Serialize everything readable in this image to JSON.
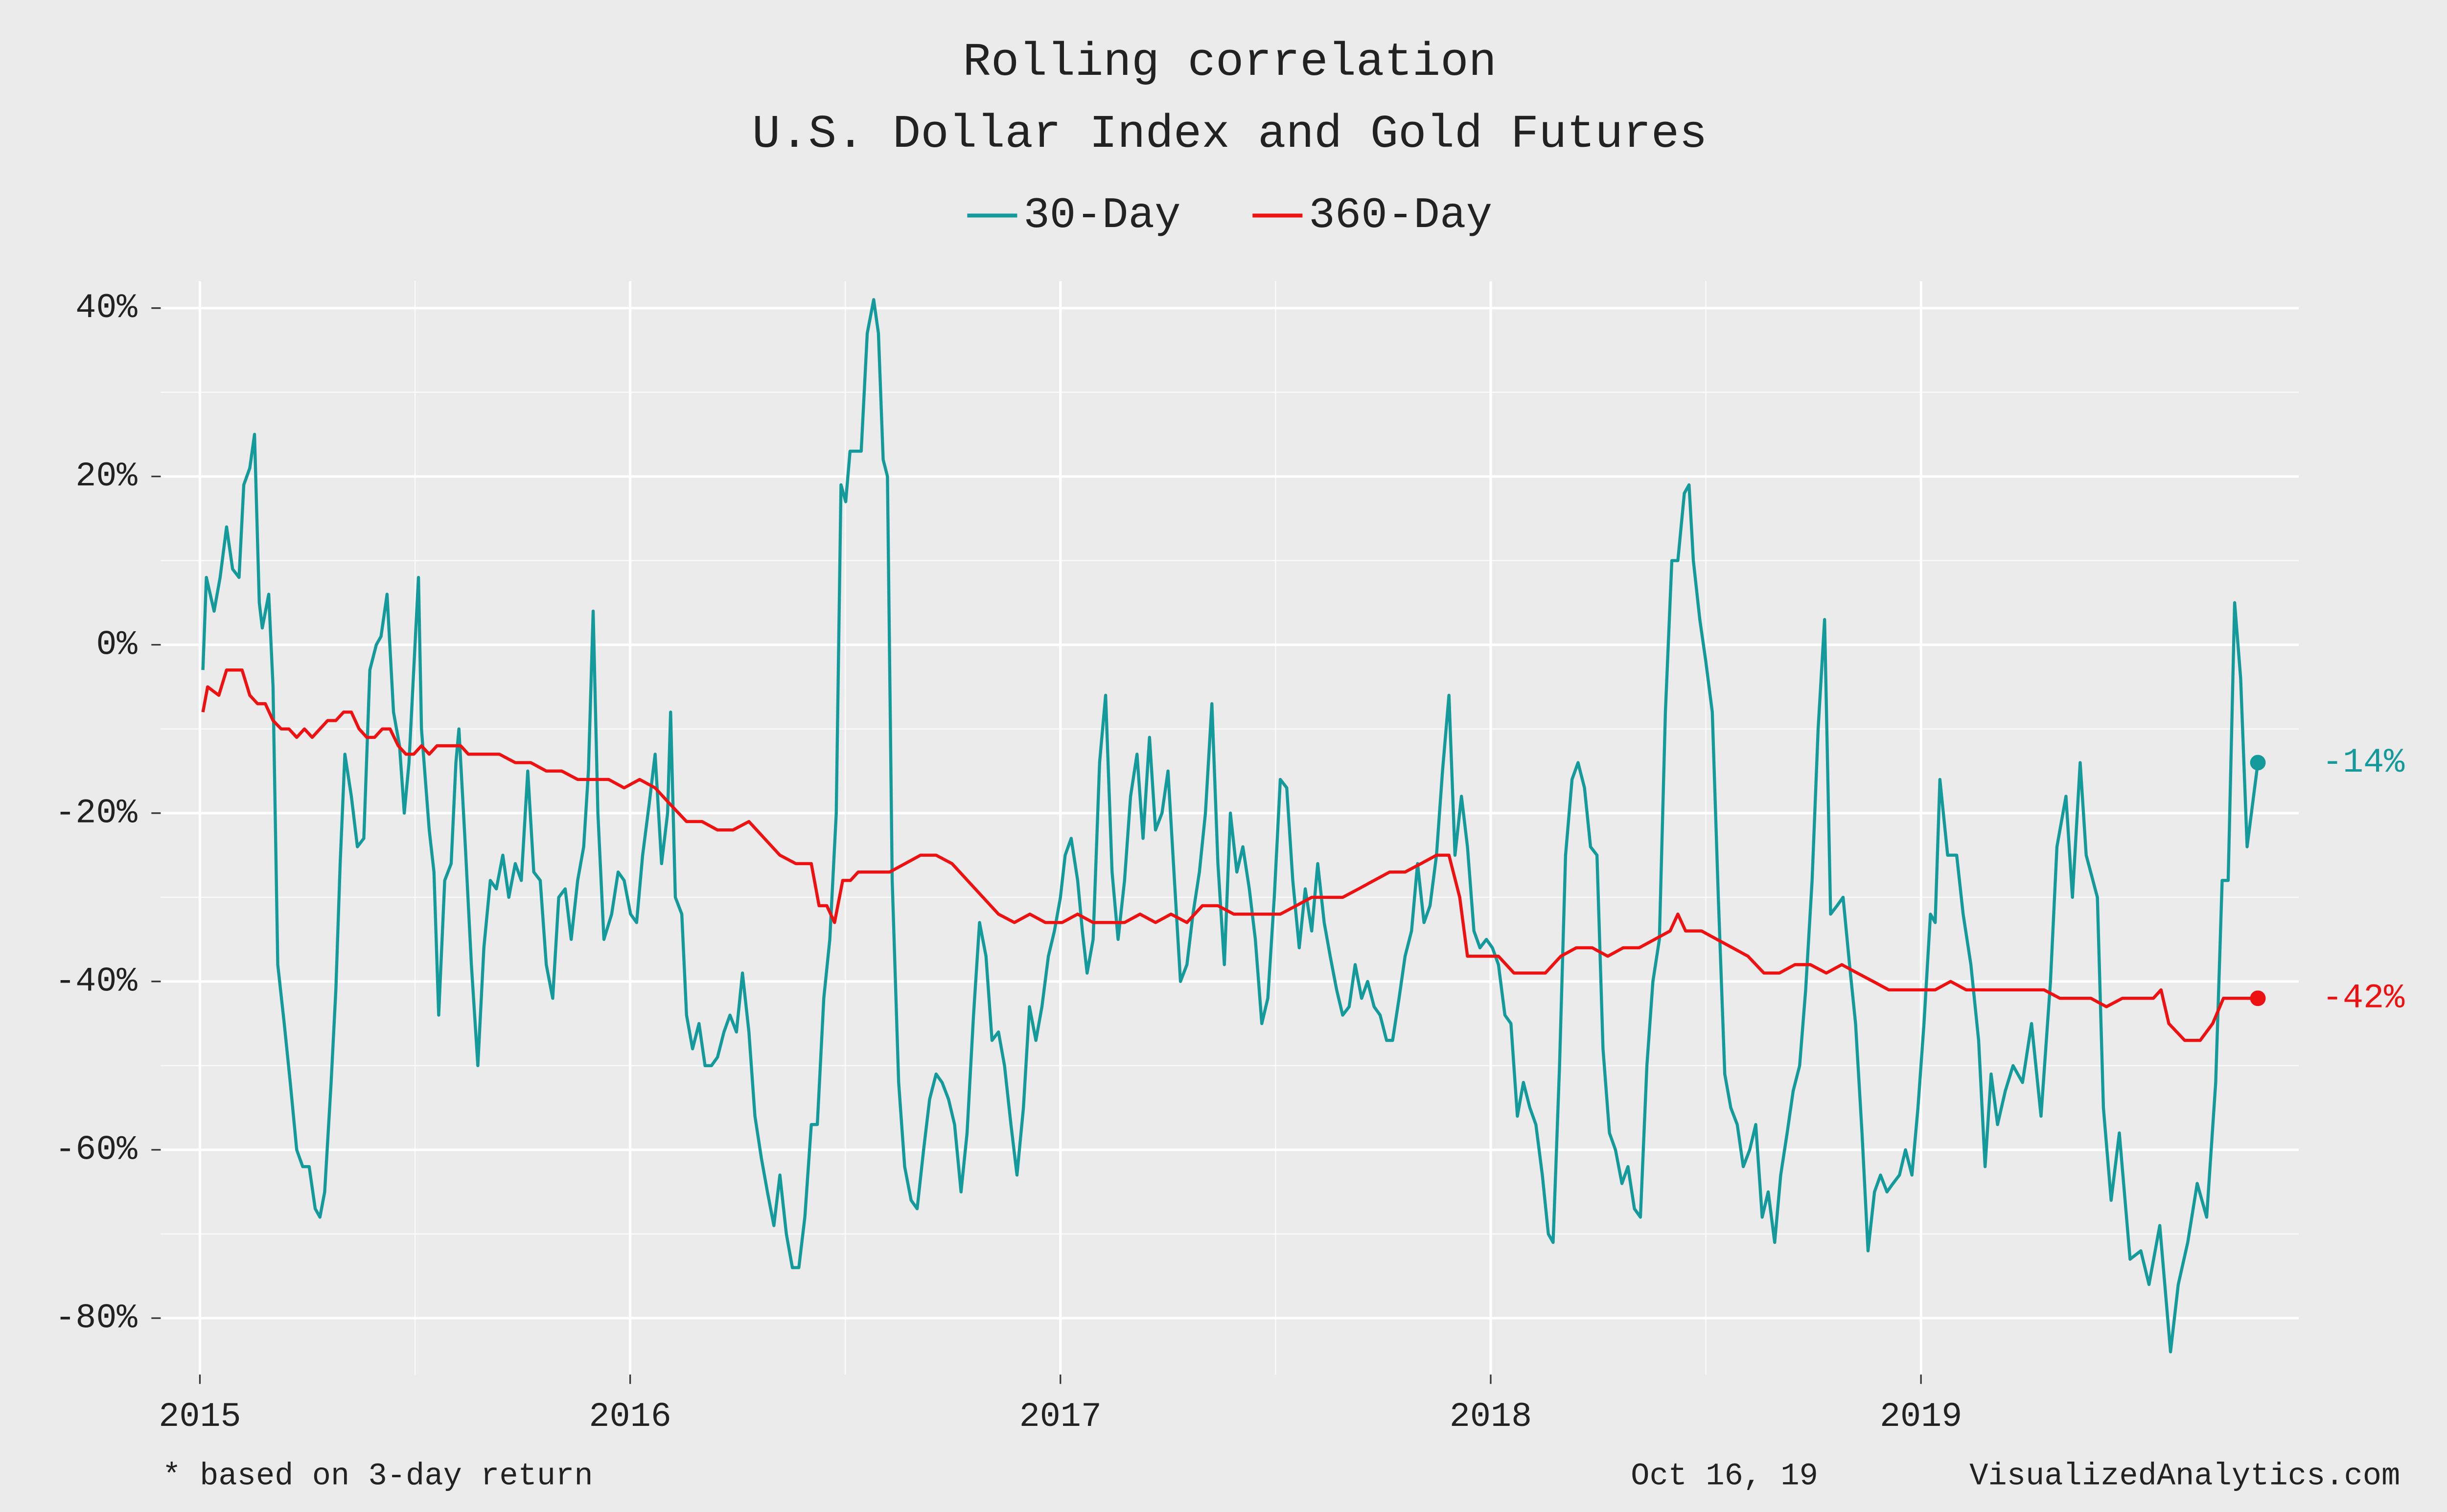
{
  "chart_data": {
    "type": "line",
    "title": "Rolling correlation",
    "subtitle": "U.S. Dollar Index and Gold Futures",
    "note": "* based on 3-day return",
    "date": "Oct 16, 19",
    "source": "VisualizedAnalytics.com",
    "legend": "top",
    "grid": true,
    "xlim": [
      2014.909,
      2019.878
    ],
    "xticks": [
      2015,
      2016,
      2017,
      2018,
      2019
    ],
    "ylim": [
      -86.7,
      43.2
    ],
    "yticks": [
      {
        "value": -80,
        "label": "-80%"
      },
      {
        "value": -60,
        "label": "-60%"
      },
      {
        "value": -40,
        "label": "-40%"
      },
      {
        "value": -20,
        "label": "-20%"
      },
      {
        "value": 0,
        "label": "0%"
      },
      {
        "value": 20,
        "label": "20%"
      },
      {
        "value": 40,
        "label": "40%"
      }
    ],
    "series": [
      {
        "name": "30-Day",
        "color": "#149a9a",
        "end_label": "-14%",
        "x": [
          2015.007,
          2015.015,
          2015.033,
          2015.047,
          2015.062,
          2015.076,
          2015.091,
          2015.102,
          2015.116,
          2015.127,
          2015.138,
          2015.145,
          2015.16,
          2015.17,
          2015.181,
          2015.196,
          2015.21,
          2015.225,
          2015.239,
          2015.254,
          2015.268,
          2015.279,
          2015.29,
          2015.305,
          2015.316,
          2015.326,
          2015.337,
          2015.352,
          2015.366,
          2015.381,
          2015.395,
          2015.41,
          2015.421,
          2015.435,
          2015.45,
          2015.464,
          2015.475,
          2015.486,
          2015.508,
          2015.515,
          2015.533,
          2015.544,
          2015.555,
          2015.569,
          2015.584,
          2015.595,
          2015.602,
          2015.617,
          2015.631,
          2015.646,
          2015.66,
          2015.675,
          2015.689,
          2015.704,
          2015.718,
          2015.733,
          2015.747,
          2015.762,
          2015.776,
          2015.791,
          2015.805,
          2015.82,
          2015.834,
          2015.849,
          2015.863,
          2015.878,
          2015.892,
          2015.903,
          2015.914,
          2015.925,
          2015.939,
          2015.957,
          2015.972,
          2015.986,
          2016.001,
          2016.015,
          2016.029,
          2016.044,
          2016.058,
          2016.073,
          2016.087,
          2016.094,
          2016.105,
          2016.12,
          2016.131,
          2016.145,
          2016.16,
          2016.174,
          2016.189,
          2016.203,
          2016.218,
          2016.232,
          2016.247,
          2016.261,
          2016.276,
          2016.29,
          2016.305,
          2016.319,
          2016.334,
          2016.348,
          2016.363,
          2016.377,
          2016.392,
          2016.406,
          2016.421,
          2016.435,
          2016.45,
          2016.464,
          2016.479,
          2016.49,
          2016.501,
          2016.511,
          2016.526,
          2016.537,
          2016.551,
          2016.566,
          2016.577,
          2016.588,
          2016.598,
          2016.609,
          2016.624,
          2016.638,
          2016.653,
          2016.667,
          2016.682,
          2016.696,
          2016.711,
          2016.725,
          2016.74,
          2016.754,
          2016.769,
          2016.783,
          2016.798,
          2016.812,
          2016.827,
          2016.841,
          2016.856,
          2016.87,
          2016.885,
          2016.899,
          2016.914,
          2016.928,
          2016.943,
          2016.957,
          2016.972,
          2016.986,
          2017.0,
          2017.011,
          2017.025,
          2017.04,
          2017.051,
          2017.062,
          2017.076,
          2017.091,
          2017.105,
          2017.12,
          2017.134,
          2017.149,
          2017.163,
          2017.178,
          2017.192,
          2017.207,
          2017.221,
          2017.236,
          2017.25,
          2017.265,
          2017.279,
          2017.294,
          2017.308,
          2017.323,
          2017.337,
          2017.352,
          2017.366,
          2017.381,
          2017.395,
          2017.41,
          2017.424,
          2017.439,
          2017.453,
          2017.468,
          2017.482,
          2017.497,
          2017.511,
          2017.526,
          2017.54,
          2017.555,
          2017.569,
          2017.584,
          2017.598,
          2017.613,
          2017.627,
          2017.642,
          2017.656,
          2017.671,
          2017.685,
          2017.7,
          2017.714,
          2017.729,
          2017.743,
          2017.758,
          2017.772,
          2017.787,
          2017.801,
          2017.816,
          2017.83,
          2017.845,
          2017.859,
          2017.874,
          2017.888,
          2017.903,
          2017.917,
          2017.932,
          2017.946,
          2017.961,
          2017.975,
          2017.99,
          2018.004,
          2018.018,
          2018.033,
          2018.047,
          2018.062,
          2018.076,
          2018.091,
          2018.105,
          2018.12,
          2018.134,
          2018.145,
          2018.16,
          2018.174,
          2018.189,
          2018.203,
          2018.218,
          2018.232,
          2018.247,
          2018.261,
          2018.276,
          2018.29,
          2018.305,
          2018.319,
          2018.334,
          2018.348,
          2018.363,
          2018.377,
          2018.392,
          2018.406,
          2018.421,
          2018.435,
          2018.45,
          2018.461,
          2018.471,
          2018.486,
          2018.5,
          2018.515,
          2018.529,
          2018.544,
          2018.558,
          2018.573,
          2018.587,
          2018.602,
          2018.616,
          2018.631,
          2018.645,
          2018.66,
          2018.674,
          2018.689,
          2018.703,
          2018.718,
          2018.732,
          2018.747,
          2018.761,
          2018.776,
          2018.79,
          2018.805,
          2018.819,
          2018.834,
          2018.848,
          2018.863,
          2018.877,
          2018.892,
          2018.906,
          2018.921,
          2018.935,
          2018.95,
          2018.964,
          2018.979,
          2018.993,
          2019.007,
          2019.022,
          2019.033,
          2019.044,
          2019.062,
          2019.083,
          2019.098,
          2019.116,
          2019.134,
          2019.149,
          2019.163,
          2019.178,
          2019.196,
          2019.214,
          2019.236,
          2019.257,
          2019.279,
          2019.301,
          2019.316,
          2019.337,
          2019.352,
          2019.37,
          2019.384,
          2019.41,
          2019.424,
          2019.442,
          2019.461,
          2019.486,
          2019.511,
          2019.53,
          2019.555,
          2019.58,
          2019.598,
          2019.62,
          2019.642,
          2019.664,
          2019.685,
          2019.7,
          2019.714,
          2019.729,
          2019.743,
          2019.758,
          2019.783
        ],
        "values": [
          -3,
          8,
          4,
          8,
          14,
          9,
          8,
          19,
          21,
          25,
          5,
          2,
          6,
          -5,
          -38,
          -45,
          -52,
          -60,
          -62,
          -62,
          -67,
          -68,
          -65,
          -52,
          -41,
          -26,
          -13,
          -18,
          -24,
          -23,
          -3,
          0,
          1,
          6,
          -8,
          -12,
          -20,
          -14,
          8,
          -10,
          -22,
          -27,
          -44,
          -28,
          -26,
          -14,
          -10,
          -24,
          -38,
          -50,
          -36,
          -28,
          -29,
          -25,
          -30,
          -26,
          -28,
          -15,
          -27,
          -28,
          -38,
          -42,
          -30,
          -29,
          -35,
          -28,
          -24,
          -15,
          4,
          -20,
          -35,
          -32,
          -27,
          -28,
          -32,
          -33,
          -25,
          -19,
          -13,
          -26,
          -20,
          -8,
          -30,
          -32,
          -44,
          -48,
          -45,
          -50,
          -50,
          -49,
          -46,
          -44,
          -46,
          -39,
          -46,
          -56,
          -61,
          -65,
          -69,
          -63,
          -70,
          -74,
          -74,
          -68,
          -57,
          -57,
          -42,
          -35,
          -20,
          19,
          17,
          23,
          23,
          23,
          37,
          41,
          37,
          22,
          20,
          -28,
          -52,
          -62,
          -66,
          -67,
          -60,
          -54,
          -51,
          -52,
          -54,
          -57,
          -65,
          -58,
          -44,
          -33,
          -37,
          -47,
          -46,
          -50,
          -57,
          -63,
          -55,
          -43,
          -47,
          -43,
          -37,
          -34,
          -30,
          -25,
          -23,
          -28,
          -34,
          -39,
          -35,
          -14,
          -6,
          -27,
          -35,
          -28,
          -18,
          -13,
          -23,
          -11,
          -22,
          -20,
          -15,
          -28,
          -40,
          -38,
          -32,
          -27,
          -20,
          -7,
          -26,
          -38,
          -20,
          -27,
          -24,
          -29,
          -35,
          -45,
          -42,
          -30,
          -16,
          -17,
          -28,
          -36,
          -29,
          -34,
          -26,
          -33,
          -37,
          -41,
          -44,
          -43,
          -38,
          -42,
          -40,
          -43,
          -44,
          -47,
          -47,
          -42,
          -37,
          -34,
          -26,
          -33,
          -31,
          -25,
          -15,
          -6,
          -25,
          -18,
          -24,
          -34,
          -36,
          -35,
          -36,
          -38,
          -44,
          -45,
          -56,
          -52,
          -55,
          -57,
          -63,
          -70,
          -71,
          -50,
          -25,
          -16,
          -14,
          -17,
          -24,
          -25,
          -48,
          -58,
          -60,
          -64,
          -62,
          -67,
          -68,
          -50,
          -40,
          -35,
          -8,
          10,
          10,
          18,
          19,
          10,
          3,
          -2,
          -8,
          -30,
          -51,
          -55,
          -57,
          -62,
          -60,
          -57,
          -68,
          -65,
          -71,
          -63,
          -58,
          -53,
          -50,
          -41,
          -28,
          -10,
          3,
          -32,
          -31,
          -30,
          -38,
          -45,
          -58,
          -72,
          -65,
          -63,
          -65,
          -64,
          -63,
          -60,
          -63,
          -55,
          -45,
          -32,
          -33,
          -16,
          -25,
          -25,
          -32,
          -38,
          -47,
          -62,
          -51,
          -57,
          -53,
          -50,
          -52,
          -45,
          -56,
          -40,
          -24,
          -18,
          -30,
          -14,
          -25,
          -30,
          -55,
          -66,
          -58,
          -73,
          -72,
          -76,
          -69,
          -84,
          -76,
          -71,
          -64,
          -68,
          -52,
          -28,
          -28,
          5,
          -4,
          -24,
          -14
        ]
      },
      {
        "name": "360-Day",
        "color": "#ee1111",
        "end_label": "-42%",
        "x": [
          2015.007,
          2015.018,
          2015.044,
          2015.062,
          2015.08,
          2015.098,
          2015.116,
          2015.134,
          2015.152,
          2015.17,
          2015.189,
          2015.207,
          2015.225,
          2015.243,
          2015.261,
          2015.279,
          2015.297,
          2015.316,
          2015.334,
          2015.352,
          2015.37,
          2015.388,
          2015.406,
          2015.424,
          2015.442,
          2015.461,
          2015.479,
          2015.497,
          2015.515,
          2015.533,
          2015.551,
          2015.569,
          2015.587,
          2015.606,
          2015.624,
          2015.642,
          2015.66,
          2015.696,
          2015.733,
          2015.769,
          2015.805,
          2015.841,
          2015.878,
          2015.914,
          2015.95,
          2015.986,
          2016.022,
          2016.058,
          2016.094,
          2016.131,
          2016.167,
          2016.203,
          2016.239,
          2016.276,
          2016.312,
          2016.348,
          2016.385,
          2016.421,
          2016.439,
          2016.457,
          2016.475,
          2016.494,
          2016.512,
          2016.53,
          2016.566,
          2016.603,
          2016.639,
          2016.675,
          2016.711,
          2016.748,
          2016.784,
          2016.82,
          2016.856,
          2016.893,
          2016.929,
          2016.965,
          2017.004,
          2017.04,
          2017.076,
          2017.112,
          2017.149,
          2017.185,
          2017.221,
          2017.257,
          2017.294,
          2017.33,
          2017.366,
          2017.403,
          2017.439,
          2017.475,
          2017.511,
          2017.548,
          2017.584,
          2017.62,
          2017.656,
          2017.693,
          2017.729,
          2017.765,
          2017.801,
          2017.838,
          2017.874,
          2017.903,
          2017.928,
          2017.946,
          2017.983,
          2018.018,
          2018.054,
          2018.091,
          2018.127,
          2018.163,
          2018.199,
          2018.236,
          2018.272,
          2018.308,
          2018.345,
          2018.381,
          2018.417,
          2018.435,
          2018.453,
          2018.49,
          2018.526,
          2018.562,
          2018.598,
          2018.635,
          2018.671,
          2018.707,
          2018.743,
          2018.78,
          2018.816,
          2018.852,
          2018.889,
          2018.925,
          2018.961,
          2018.997,
          2019.033,
          2019.069,
          2019.105,
          2019.141,
          2019.178,
          2019.214,
          2019.25,
          2019.286,
          2019.323,
          2019.359,
          2019.395,
          2019.431,
          2019.468,
          2019.504,
          2019.54,
          2019.558,
          2019.576,
          2019.613,
          2019.649,
          2019.678,
          2019.703,
          2019.74,
          2019.783
        ],
        "values": [
          -8,
          -5,
          -6,
          -3,
          -3,
          -3,
          -6,
          -7,
          -7,
          -9,
          -10,
          -10,
          -11,
          -10,
          -11,
          -10,
          -9,
          -9,
          -8,
          -8,
          -10,
          -11,
          -11,
          -10,
          -10,
          -12,
          -13,
          -13,
          -12,
          -13,
          -12,
          -12,
          -12,
          -12,
          -13,
          -13,
          -13,
          -13,
          -14,
          -14,
          -15,
          -15,
          -16,
          -16,
          -16,
          -17,
          -16,
          -17,
          -19,
          -21,
          -21,
          -22,
          -22,
          -21,
          -23,
          -25,
          -26,
          -26,
          -31,
          -31,
          -33,
          -28,
          -28,
          -27,
          -27,
          -27,
          -26,
          -25,
          -25,
          -26,
          -28,
          -30,
          -32,
          -33,
          -32,
          -33,
          -33,
          -32,
          -33,
          -33,
          -33,
          -32,
          -33,
          -32,
          -33,
          -31,
          -31,
          -32,
          -32,
          -32,
          -32,
          -31,
          -30,
          -30,
          -30,
          -29,
          -28,
          -27,
          -27,
          -26,
          -25,
          -25,
          -30,
          -37,
          -37,
          -37,
          -39,
          -39,
          -39,
          -37,
          -36,
          -36,
          -37,
          -36,
          -36,
          -35,
          -34,
          -32,
          -34,
          -34,
          -35,
          -36,
          -37,
          -39,
          -39,
          -38,
          -38,
          -39,
          -38,
          -39,
          -40,
          -41,
          -41,
          -41,
          -41,
          -40,
          -41,
          -41,
          -41,
          -41,
          -41,
          -41,
          -42,
          -42,
          -42,
          -43,
          -42,
          -42,
          -42,
          -41,
          -45,
          -47,
          -47,
          -45,
          -42,
          -42,
          -42
        ]
      }
    ]
  }
}
